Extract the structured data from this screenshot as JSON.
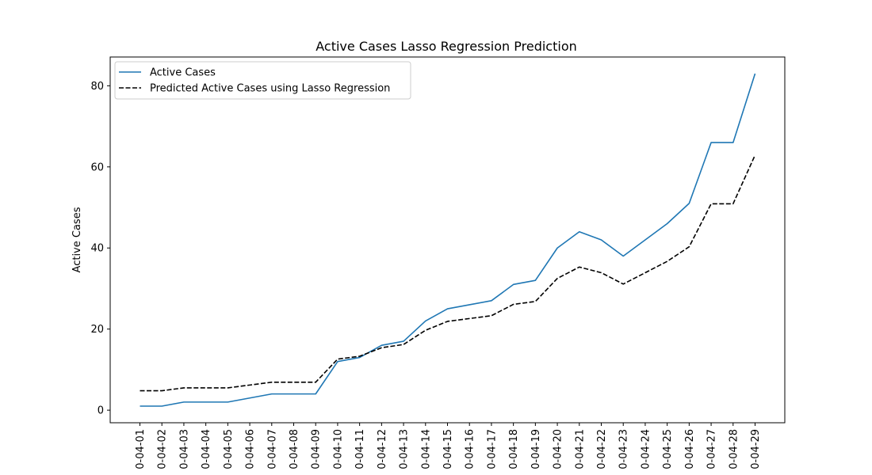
{
  "chart_data": {
    "type": "line",
    "title": "Active Cases Lasso Regression Prediction",
    "xlabel": "",
    "ylabel": "Active Cases",
    "x": [
      "0-04-01",
      "0-04-02",
      "0-04-03",
      "0-04-04",
      "0-04-05",
      "0-04-06",
      "0-04-07",
      "0-04-08",
      "0-04-09",
      "0-04-10",
      "0-04-11",
      "0-04-12",
      "0-04-13",
      "0-04-14",
      "0-04-15",
      "0-04-16",
      "0-04-17",
      "0-04-18",
      "0-04-19",
      "0-04-20",
      "0-04-21",
      "0-04-22",
      "0-04-23",
      "0-04-24",
      "0-04-25",
      "0-04-26",
      "0-04-27",
      "0-04-28",
      "0-04-29"
    ],
    "series": [
      {
        "name": "Active Cases",
        "color": "#1f77b4",
        "style": "solid",
        "values": [
          1,
          1,
          2,
          2,
          2,
          3,
          4,
          4,
          4,
          12,
          13,
          16,
          17,
          22,
          25,
          26,
          27,
          31,
          32,
          40,
          44,
          42,
          38,
          42,
          46,
          51,
          66,
          66,
          83
        ]
      },
      {
        "name": "Predicted Active Cases using Lasso Regression",
        "color": "#000000",
        "style": "dashed",
        "values": [
          4.8,
          4.8,
          5.5,
          5.5,
          5.5,
          6.2,
          6.9,
          6.9,
          6.9,
          12.6,
          13.3,
          15.4,
          16.2,
          19.7,
          21.9,
          22.6,
          23.3,
          26.1,
          26.8,
          32.5,
          35.3,
          33.9,
          31.1,
          33.9,
          36.7,
          40.3,
          50.9,
          50.9,
          62.9
        ]
      }
    ],
    "yticks": [
      0,
      20,
      40,
      60,
      80
    ],
    "ylim": [
      -3.1,
      87.1
    ],
    "grid": false,
    "legend_position": "top-left"
  }
}
